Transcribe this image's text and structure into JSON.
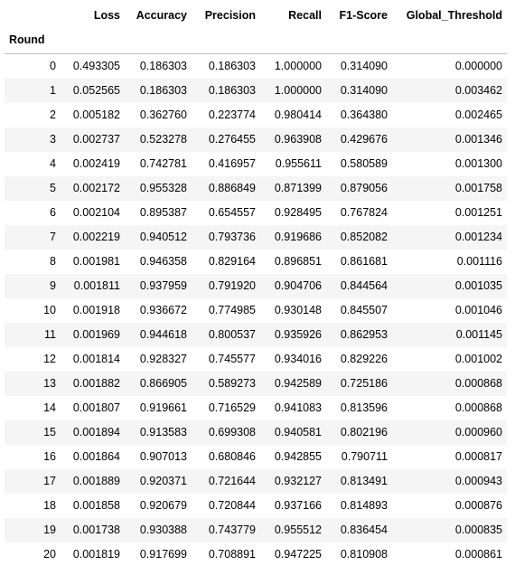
{
  "table": {
    "index_name": "Round",
    "columns": [
      "Loss",
      "Accuracy",
      "Precision",
      "Recall",
      "F1-Score",
      "Global_Threshold"
    ],
    "rows": [
      {
        "round": "0",
        "values": [
          "0.493305",
          "0.186303",
          "0.186303",
          "1.000000",
          "0.314090",
          "0.000000"
        ]
      },
      {
        "round": "1",
        "values": [
          "0.052565",
          "0.186303",
          "0.186303",
          "1.000000",
          "0.314090",
          "0.003462"
        ]
      },
      {
        "round": "2",
        "values": [
          "0.005182",
          "0.362760",
          "0.223774",
          "0.980414",
          "0.364380",
          "0.002465"
        ]
      },
      {
        "round": "3",
        "values": [
          "0.002737",
          "0.523278",
          "0.276455",
          "0.963908",
          "0.429676",
          "0.001346"
        ]
      },
      {
        "round": "4",
        "values": [
          "0.002419",
          "0.742781",
          "0.416957",
          "0.955611",
          "0.580589",
          "0.001300"
        ]
      },
      {
        "round": "5",
        "values": [
          "0.002172",
          "0.955328",
          "0.886849",
          "0.871399",
          "0.879056",
          "0.001758"
        ]
      },
      {
        "round": "6",
        "values": [
          "0.002104",
          "0.895387",
          "0.654557",
          "0.928495",
          "0.767824",
          "0.001251"
        ]
      },
      {
        "round": "7",
        "values": [
          "0.002219",
          "0.940512",
          "0.793736",
          "0.919686",
          "0.852082",
          "0.001234"
        ]
      },
      {
        "round": "8",
        "values": [
          "0.001981",
          "0.946358",
          "0.829164",
          "0.896851",
          "0.861681",
          "0.001116"
        ]
      },
      {
        "round": "9",
        "values": [
          "0.001811",
          "0.937959",
          "0.791920",
          "0.904706",
          "0.844564",
          "0.001035"
        ]
      },
      {
        "round": "10",
        "values": [
          "0.001918",
          "0.936672",
          "0.774985",
          "0.930148",
          "0.845507",
          "0.001046"
        ]
      },
      {
        "round": "11",
        "values": [
          "0.001969",
          "0.944618",
          "0.800537",
          "0.935926",
          "0.862953",
          "0.001145"
        ]
      },
      {
        "round": "12",
        "values": [
          "0.001814",
          "0.928327",
          "0.745577",
          "0.934016",
          "0.829226",
          "0.001002"
        ]
      },
      {
        "round": "13",
        "values": [
          "0.001882",
          "0.866905",
          "0.589273",
          "0.942589",
          "0.725186",
          "0.000868"
        ]
      },
      {
        "round": "14",
        "values": [
          "0.001807",
          "0.919661",
          "0.716529",
          "0.941083",
          "0.813596",
          "0.000868"
        ]
      },
      {
        "round": "15",
        "values": [
          "0.001894",
          "0.913583",
          "0.699308",
          "0.940581",
          "0.802196",
          "0.000960"
        ]
      },
      {
        "round": "16",
        "values": [
          "0.001864",
          "0.907013",
          "0.680846",
          "0.942855",
          "0.790711",
          "0.000817"
        ]
      },
      {
        "round": "17",
        "values": [
          "0.001889",
          "0.920371",
          "0.721644",
          "0.932127",
          "0.813491",
          "0.000943"
        ]
      },
      {
        "round": "18",
        "values": [
          "0.001858",
          "0.920679",
          "0.720844",
          "0.937166",
          "0.814893",
          "0.000876"
        ]
      },
      {
        "round": "19",
        "values": [
          "0.001738",
          "0.930388",
          "0.743779",
          "0.955512",
          "0.836454",
          "0.000835"
        ]
      },
      {
        "round": "20",
        "values": [
          "0.001819",
          "0.917699",
          "0.708891",
          "0.947225",
          "0.810908",
          "0.000861"
        ]
      }
    ]
  }
}
